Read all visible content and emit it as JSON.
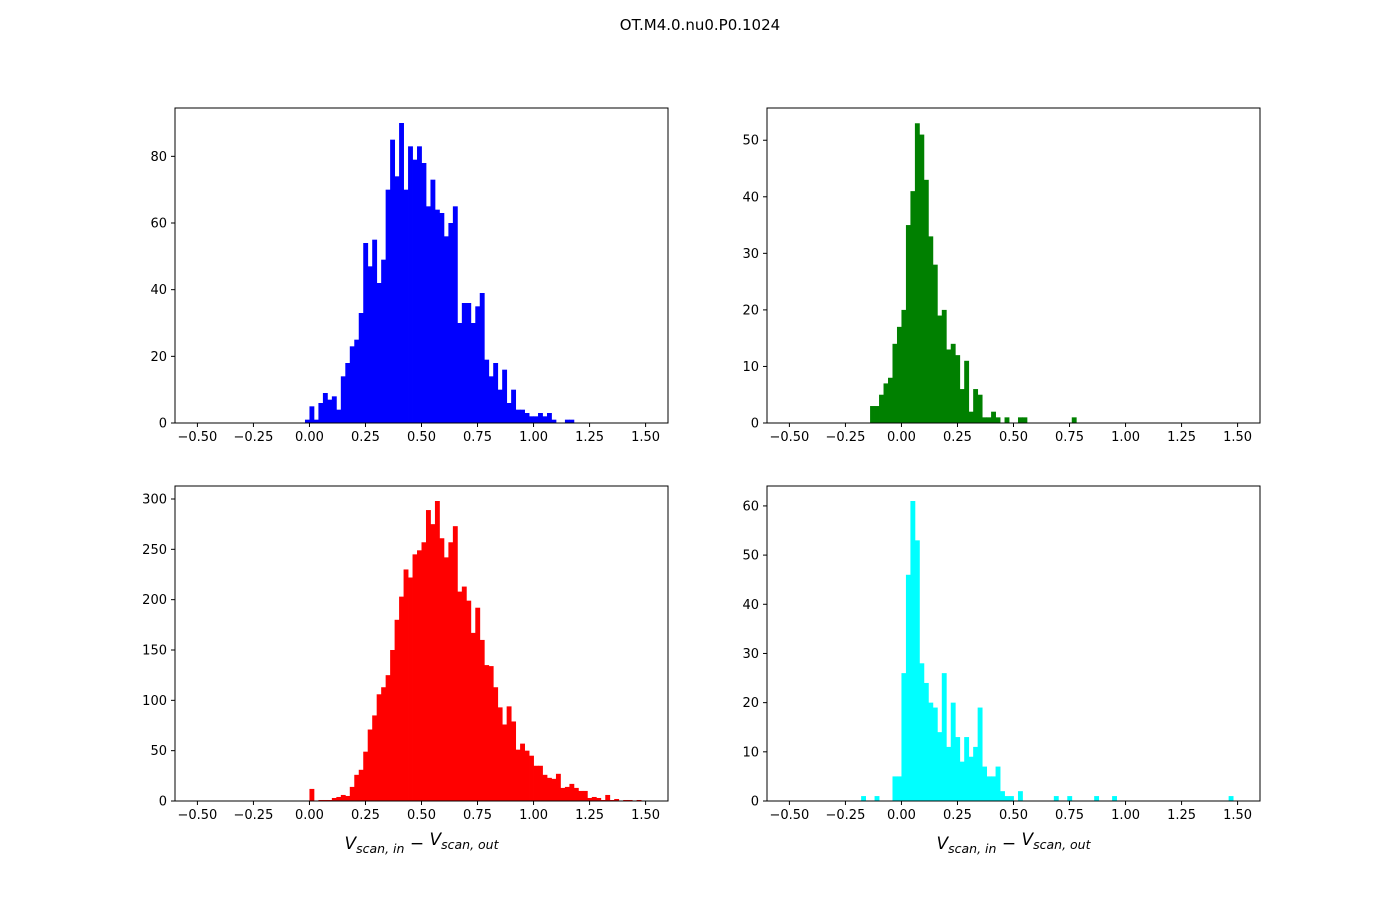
{
  "title": "OT.M4.0.nu0.P0.1024",
  "chart_data": [
    {
      "type": "bar",
      "kind": "histogram",
      "panel": "top-left",
      "color": "#0000ff",
      "bin_start": -0.02,
      "bin_width": 0.02,
      "values": [
        1,
        5,
        1,
        6,
        9,
        7,
        8,
        4,
        14,
        18,
        23,
        25,
        33,
        54,
        47,
        55,
        42,
        49,
        70,
        85,
        74,
        90,
        70,
        83,
        79,
        83,
        78,
        65,
        73,
        64,
        63,
        56,
        60,
        65,
        30,
        36,
        36,
        30,
        35,
        39,
        19,
        14,
        18,
        10,
        16,
        6,
        10,
        4,
        4,
        3,
        2,
        2,
        3,
        2,
        3,
        1,
        0,
        0,
        1,
        1
      ],
      "xlim": [
        -0.6,
        1.6
      ],
      "ylim": [
        0,
        94.5
      ],
      "xticks": [
        -0.5,
        -0.25,
        0,
        0.25,
        0.5,
        0.75,
        1,
        1.25,
        1.5
      ],
      "xtick_labels": [
        "−0.50",
        "−0.25",
        "0.00",
        "0.25",
        "0.50",
        "0.75",
        "1.00",
        "1.25",
        "1.50"
      ],
      "yticks": [
        0,
        20,
        40,
        60,
        80
      ],
      "ytick_labels": [
        "0",
        "20",
        "40",
        "60",
        "80"
      ],
      "xlabel": null,
      "grid": false
    },
    {
      "type": "bar",
      "kind": "histogram",
      "panel": "top-right",
      "color": "#008000",
      "bin_start": -0.14,
      "bin_width": 0.02,
      "values": [
        3,
        3,
        5,
        7,
        8,
        14,
        17,
        20,
        35,
        41,
        53,
        51,
        43,
        33,
        28,
        19,
        20,
        13,
        14,
        12,
        6,
        11,
        2,
        6,
        5,
        1,
        1,
        2,
        1,
        0,
        1,
        0,
        0,
        1,
        1,
        0,
        0,
        0,
        0,
        0,
        0,
        0,
        0,
        0,
        0,
        1
      ],
      "xlim": [
        -0.6,
        1.6
      ],
      "ylim": [
        0,
        55.7
      ],
      "xticks": [
        -0.5,
        -0.25,
        0,
        0.25,
        0.5,
        0.75,
        1,
        1.25,
        1.5
      ],
      "xtick_labels": [
        "−0.50",
        "−0.25",
        "0.00",
        "0.25",
        "0.50",
        "0.75",
        "1.00",
        "1.25",
        "1.50"
      ],
      "yticks": [
        0,
        10,
        20,
        30,
        40,
        50
      ],
      "ytick_labels": [
        "0",
        "10",
        "20",
        "30",
        "40",
        "50"
      ],
      "xlabel": null,
      "grid": false
    },
    {
      "type": "bar",
      "kind": "histogram",
      "panel": "bottom-left",
      "color": "#ff0000",
      "bin_start": 0.0,
      "bin_width": 0.02,
      "values": [
        12,
        0,
        1,
        1,
        1,
        3,
        4,
        6,
        5,
        14,
        26,
        31,
        49,
        71,
        85,
        106,
        113,
        125,
        150,
        180,
        203,
        230,
        222,
        245,
        249,
        257,
        289,
        275,
        298,
        261,
        242,
        257,
        273,
        208,
        213,
        199,
        167,
        192,
        160,
        135,
        134,
        113,
        93,
        76,
        94,
        79,
        51,
        57,
        50,
        45,
        35,
        35,
        26,
        23,
        22,
        27,
        13,
        14,
        17,
        13,
        10,
        10,
        3,
        4,
        3,
        1,
        6,
        1,
        2,
        0,
        1,
        1,
        0,
        1
      ],
      "xlim": [
        -0.6,
        1.6
      ],
      "ylim": [
        0,
        312.9
      ],
      "xticks": [
        -0.5,
        -0.25,
        0,
        0.25,
        0.5,
        0.75,
        1,
        1.25,
        1.5
      ],
      "xtick_labels": [
        "−0.50",
        "−0.25",
        "0.00",
        "0.25",
        "0.50",
        "0.75",
        "1.00",
        "1.25",
        "1.50"
      ],
      "yticks": [
        0,
        50,
        100,
        150,
        200,
        250,
        300
      ],
      "ytick_labels": [
        "0",
        "50",
        "100",
        "150",
        "200",
        "250",
        "300"
      ],
      "xlabel": {
        "main1": "V",
        "sub1": "scan, in",
        "op": " − ",
        "main2": "V",
        "sub2": "scan, out"
      },
      "grid": false
    },
    {
      "type": "bar",
      "kind": "histogram",
      "panel": "bottom-right",
      "color": "#00ffff",
      "bin_start": -0.18,
      "bin_width": 0.02,
      "values": [
        1,
        0,
        0,
        1,
        0,
        0,
        0,
        5,
        5,
        26,
        46,
        61,
        53,
        28,
        24,
        20,
        19,
        14,
        26,
        11,
        20,
        13,
        8,
        13,
        9,
        11,
        19,
        7,
        5,
        5,
        7,
        2,
        1,
        1,
        0,
        2,
        0,
        0,
        0,
        0,
        0,
        0,
        0,
        1,
        0,
        0,
        1,
        0,
        0,
        0,
        0,
        0,
        1,
        0,
        0,
        0,
        1,
        0,
        0,
        0,
        0,
        0,
        0,
        0,
        0,
        0,
        0,
        0,
        0,
        0,
        0,
        0,
        0,
        0,
        0,
        0,
        0,
        0,
        0,
        0,
        0,
        0,
        1
      ],
      "xlim": [
        -0.6,
        1.6
      ],
      "ylim": [
        0,
        64.05
      ],
      "xticks": [
        -0.5,
        -0.25,
        0,
        0.25,
        0.5,
        0.75,
        1,
        1.25,
        1.5
      ],
      "xtick_labels": [
        "−0.50",
        "−0.25",
        "0.00",
        "0.25",
        "0.50",
        "0.75",
        "1.00",
        "1.25",
        "1.50"
      ],
      "yticks": [
        0,
        10,
        20,
        30,
        40,
        50,
        60
      ],
      "ytick_labels": [
        "0",
        "10",
        "20",
        "30",
        "40",
        "50",
        "60"
      ],
      "xlabel": {
        "main1": "V",
        "sub1": "scan, in",
        "op": " − ",
        "main2": "V",
        "sub2": "scan, out"
      },
      "grid": false
    }
  ]
}
